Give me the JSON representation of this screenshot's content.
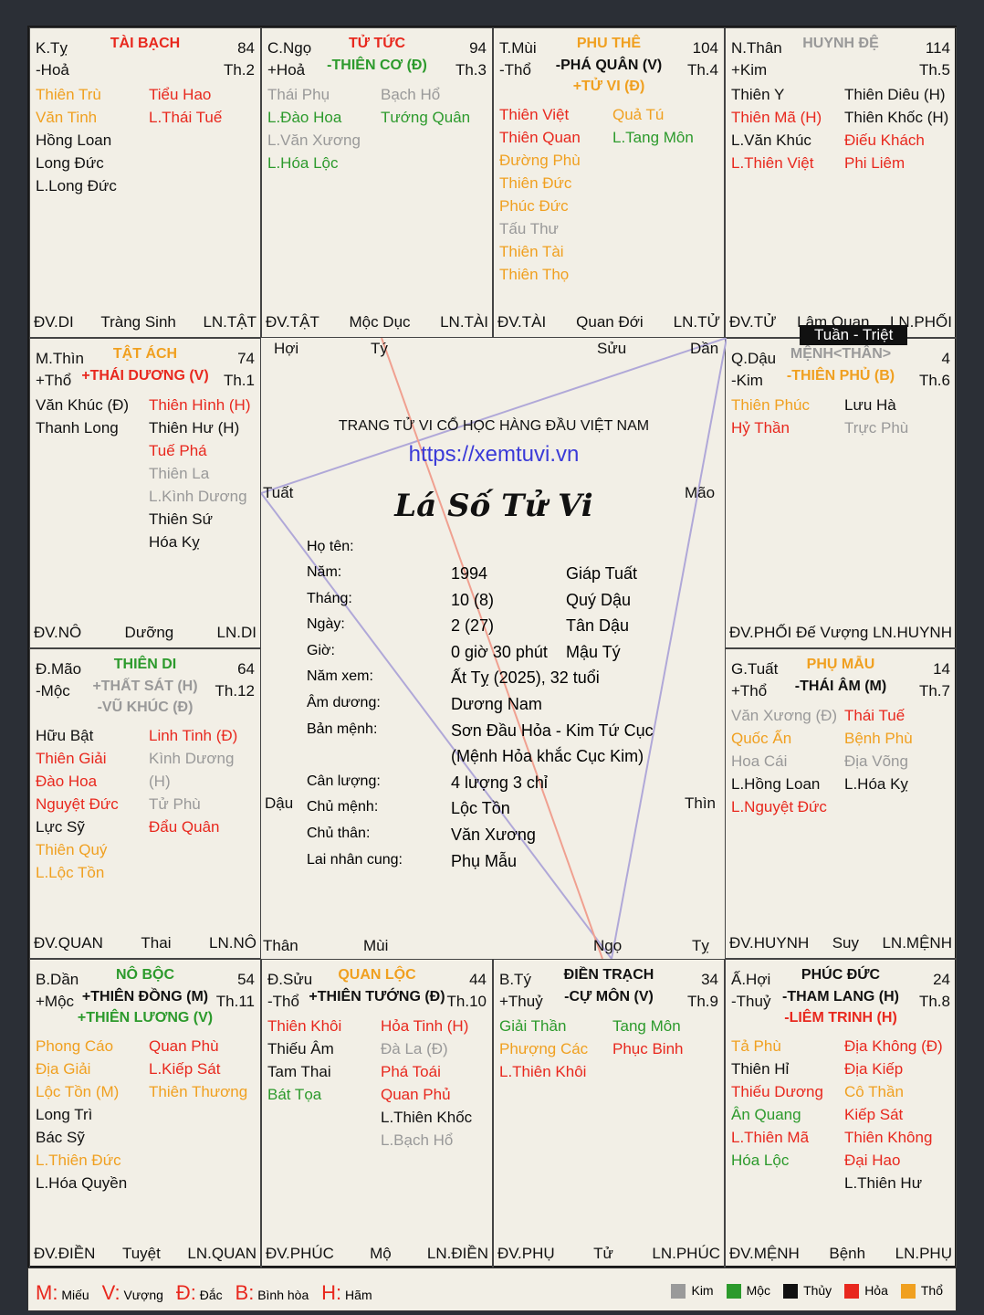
{
  "tuan_triet": "Tuần - Triệt",
  "center": {
    "site": "TRANG TỬ VI CỔ HỌC HÀNG ĐẦU VIỆT NAM",
    "url": "https://xemtuvi.vn",
    "title": "Lá Số Tử Vi",
    "name_label": "Họ tên:",
    "name_value": "",
    "rows": [
      {
        "l": "Năm:",
        "v": "1994",
        "c": "Giáp Tuất"
      },
      {
        "l": "Tháng:",
        "v": "10 (8)",
        "c": "Quý Dậu"
      },
      {
        "l": "Ngày:",
        "v": "2 (27)",
        "c": "Tân Dậu"
      },
      {
        "l": "Giờ:",
        "v": "0 giờ 30 phút",
        "c": "Mậu Tý"
      },
      {
        "l": "Năm xem:",
        "v": "Ất Tỵ (2025), 32 tuổi",
        "c": ""
      },
      {
        "l": "Âm dương:",
        "v": "Dương Nam",
        "c": ""
      },
      {
        "l": "Bản mệnh:",
        "v": "Sơn Đầu Hỏa - Kim Tứ Cục",
        "c": ""
      },
      {
        "l": "",
        "v": "(Mệnh Hỏa khắc Cục Kim)",
        "c": ""
      },
      {
        "l": "Cân lượng:",
        "v": "4 lượng 3 chỉ",
        "c": ""
      },
      {
        "l": "Chủ mệnh:",
        "v": "Lộc Tồn",
        "c": ""
      },
      {
        "l": "Chủ thân:",
        "v": "Văn Xương",
        "c": ""
      },
      {
        "l": "Lai nhân cung:",
        "v": "Phụ Mẫu",
        "c": ""
      }
    ],
    "branches": {
      "hoi": "Hợi",
      "ty_rat": "Tý",
      "suu": "Sửu",
      "dan": "Dần",
      "tuat": "Tuất",
      "mao": "Mão",
      "dau": "Dậu",
      "thin": "Thìn",
      "than": "Thân",
      "mui": "Mùi",
      "ngo": "Ngọ",
      "ty_snake": "Tỵ"
    }
  },
  "cells": [
    {
      "id": "ty",
      "pos": "K.Tỵ",
      "el": "-Hoả",
      "agn": "84",
      "th": "Th.2",
      "pal": "TÀI BẠCH",
      "palc": "r",
      "majors": [],
      "left": [
        [
          "Thiên Trù",
          "o"
        ],
        [
          "Văn Tinh",
          "o"
        ],
        [
          "Hồng Loan",
          "k"
        ],
        [
          "Long Đức",
          "k"
        ],
        [
          "L.Long Đức",
          "k"
        ]
      ],
      "right": [
        [
          "Tiểu Hao",
          "r"
        ],
        [
          "L.Thái Tuế",
          "r"
        ]
      ],
      "b1": "ĐV.DI",
      "b2": "Tràng Sinh",
      "b3": "LN.TẬT"
    },
    {
      "id": "ngo",
      "pos": "C.Ngọ",
      "el": "+Hoả",
      "agn": "94",
      "th": "Th.3",
      "pal": "TỬ TỨC",
      "palc": "r",
      "majors": [
        [
          "-THIÊN CƠ (Đ)",
          "g"
        ]
      ],
      "left": [
        [
          "Thái Phụ",
          "gy"
        ],
        [
          "L.Đào Hoa",
          "g"
        ],
        [
          "L.Văn Xương",
          "gy"
        ],
        [
          "L.Hóa Lộc",
          "g"
        ]
      ],
      "right": [
        [
          "Bạch Hổ",
          "gy"
        ],
        [
          "Tướng Quân",
          "g"
        ]
      ],
      "b1": "ĐV.TẬT",
      "b2": "Mộc Dục",
      "b3": "LN.TÀI"
    },
    {
      "id": "mui",
      "pos": "T.Mùi",
      "el": "-Thổ",
      "agn": "104",
      "th": "Th.4",
      "pal": "PHU THÊ",
      "palc": "o",
      "majors": [
        [
          "-PHÁ QUÂN (V)",
          "k"
        ],
        [
          "+TỬ VI (Đ)",
          "o"
        ]
      ],
      "left": [
        [
          "Thiên Việt",
          "r"
        ],
        [
          "Thiên Quan",
          "r"
        ],
        [
          "Đường Phù",
          "o"
        ],
        [
          "Thiên Đức",
          "o"
        ],
        [
          "Phúc Đức",
          "o"
        ],
        [
          "Tấu Thư",
          "gy"
        ],
        [
          "Thiên Tài",
          "o"
        ],
        [
          "Thiên Thọ",
          "o"
        ]
      ],
      "right": [
        [
          "Quả Tú",
          "o"
        ],
        [
          "L.Tang Môn",
          "g"
        ]
      ],
      "b1": "ĐV.TÀI",
      "b2": "Quan Đới",
      "b3": "LN.TỬ"
    },
    {
      "id": "than",
      "pos": "N.Thân",
      "el": "+Kim",
      "agn": "114",
      "th": "Th.5",
      "pal": "HUYNH ĐỆ",
      "palc": "gy",
      "majors": [],
      "left": [
        [
          "Thiên Y",
          "k"
        ],
        [
          "Thiên Mã (H)",
          "r"
        ],
        [
          "L.Văn Khúc",
          "k"
        ],
        [
          "L.Thiên Việt",
          "r"
        ]
      ],
      "right": [
        [
          "Thiên Diêu (H)",
          "k"
        ],
        [
          "Thiên Khốc (H)",
          "k"
        ],
        [
          "Điếu Khách",
          "r"
        ],
        [
          "Phi Liêm",
          "r"
        ]
      ],
      "b1": "ĐV.TỬ",
      "b2": "Lâm Quan",
      "b3": "LN.PHỐI"
    },
    {
      "id": "thin",
      "pos": "M.Thìn",
      "el": "+Thổ",
      "agn": "74",
      "th": "Th.1",
      "pal": "TẬT ÁCH",
      "palc": "o",
      "majors": [
        [
          "+THÁI DƯƠNG (V)",
          "r"
        ]
      ],
      "left": [
        [
          "Văn Khúc (Đ)",
          "k"
        ],
        [
          "Thanh Long",
          "k"
        ]
      ],
      "right": [
        [
          "Thiên Hình (H)",
          "r"
        ],
        [
          "Thiên Hư (H)",
          "k"
        ],
        [
          "Tuế Phá",
          "r"
        ],
        [
          "Thiên La",
          "gy"
        ],
        [
          "L.Kình Dương",
          "gy"
        ],
        [
          "Thiên Sứ",
          "k"
        ],
        [
          "Hóa Kỵ",
          "k"
        ]
      ],
      "b1": "ĐV.NÔ",
      "b2": "Dưỡng",
      "b3": "LN.DI"
    },
    {
      "id": "dau",
      "pos": "Q.Dậu",
      "el": "-Kim",
      "agn": "4",
      "th": "Th.6",
      "pal": "MỆNH<THÂN>",
      "palc": "gy",
      "majors": [
        [
          "-THIÊN PHỦ (B)",
          "o"
        ]
      ],
      "left": [
        [
          "Thiên Phúc",
          "o"
        ],
        [
          "Hỷ Thần",
          "r"
        ]
      ],
      "right": [
        [
          "Lưu Hà",
          "k"
        ],
        [
          "Trực Phù",
          "gy"
        ]
      ],
      "b1": "ĐV.PHỐI",
      "b2": "Đế Vượng",
      "b3": "LN.HUYNH"
    },
    {
      "id": "mao",
      "pos": "Đ.Mão",
      "el": "-Mộc",
      "agn": "64",
      "th": "Th.12",
      "pal": "THIÊN DI",
      "palc": "g",
      "majors": [
        [
          "+THẤT SÁT (H)",
          "gy"
        ],
        [
          "-VŨ KHÚC (Đ)",
          "gy"
        ]
      ],
      "left": [
        [
          "Hữu Bật",
          "k"
        ],
        [
          "Thiên Giải",
          "r"
        ],
        [
          "Đào Hoa",
          "r"
        ],
        [
          "Nguyệt Đức",
          "r"
        ],
        [
          "Lực Sỹ",
          "k"
        ],
        [
          "Thiên Quý",
          "o"
        ],
        [
          "L.Lộc Tồn",
          "o"
        ]
      ],
      "right": [
        [
          "Linh Tinh (Đ)",
          "r"
        ],
        [
          "Kình Dương",
          "gy"
        ],
        [
          "(H)",
          "gy"
        ],
        [
          "Tử Phù",
          "gy"
        ],
        [
          "Đẩu Quân",
          "r"
        ]
      ],
      "b1": "ĐV.QUAN",
      "b2": "Thai",
      "b3": "LN.NÔ"
    },
    {
      "id": "tuat",
      "pos": "G.Tuất",
      "el": "+Thổ",
      "agn": "14",
      "th": "Th.7",
      "pal": "PHỤ MẪU",
      "palc": "o",
      "majors": [
        [
          "-THÁI ÂM (M)",
          "k"
        ]
      ],
      "left": [
        [
          "Văn Xương (Đ)",
          "gy"
        ],
        [
          "Quốc Ấn",
          "o"
        ],
        [
          "Hoa Cái",
          "gy"
        ],
        [
          "L.Hồng Loan",
          "k"
        ],
        [
          "L.Nguyệt Đức",
          "r"
        ]
      ],
      "right": [
        [
          "Thái Tuế",
          "r"
        ],
        [
          "Bệnh Phù",
          "o"
        ],
        [
          "Địa Võng",
          "gy"
        ],
        [
          "L.Hóa Kỵ",
          "k"
        ]
      ],
      "b1": "ĐV.HUYNH",
      "b2": "Suy",
      "b3": "LN.MỆNH"
    },
    {
      "id": "dan",
      "pos": "B.Dần",
      "el": "+Mộc",
      "agn": "54",
      "th": "Th.11",
      "pal": "NÔ BỘC",
      "palc": "g",
      "majors": [
        [
          "+THIÊN ĐỒNG (M)",
          "k"
        ],
        [
          "+THIÊN LƯƠNG (V)",
          "g"
        ]
      ],
      "left": [
        [
          "Phong Cáo",
          "o"
        ],
        [
          "Địa Giải",
          "o"
        ],
        [
          "Lộc Tồn (M)",
          "o"
        ],
        [
          "Long Trì",
          "k"
        ],
        [
          "Bác Sỹ",
          "k"
        ],
        [
          "L.Thiên Đức",
          "o"
        ],
        [
          "L.Hóa Quyền",
          "k"
        ]
      ],
      "right": [
        [
          "Quan Phù",
          "r"
        ],
        [
          "L.Kiếp Sát",
          "r"
        ],
        [
          "Thiên Thương",
          "o"
        ]
      ],
      "b1": "ĐV.ĐIỀN",
      "b2": "Tuyệt",
      "b3": "LN.QUAN"
    },
    {
      "id": "suu",
      "pos": "Đ.Sửu",
      "el": "-Thổ",
      "agn": "44",
      "th": "Th.10",
      "pal": "QUAN LỘC",
      "palc": "o",
      "majors": [
        [
          "+THIÊN TƯỚNG (Đ)",
          "k"
        ]
      ],
      "left": [
        [
          "Thiên Khôi",
          "r"
        ],
        [
          "Thiếu Âm",
          "k"
        ],
        [
          "Tam Thai",
          "k"
        ],
        [
          "Bát Tọa",
          "g"
        ]
      ],
      "right": [
        [
          "Hỏa Tinh (H)",
          "r"
        ],
        [
          "Đà La (Đ)",
          "gy"
        ],
        [
          "Phá Toái",
          "r"
        ],
        [
          "Quan Phủ",
          "r"
        ],
        [
          "L.Thiên Khốc",
          "k"
        ],
        [
          "L.Bạch Hổ",
          "gy"
        ]
      ],
      "b1": "ĐV.PHÚC",
      "b2": "Mộ",
      "b3": "LN.ĐIỀN"
    },
    {
      "id": "tyrat",
      "pos": "B.Tý",
      "el": "+Thuỷ",
      "agn": "34",
      "th": "Th.9",
      "pal": "ĐIỀN TRẠCH",
      "palc": "k",
      "majors": [
        [
          "-CỰ MÔN (V)",
          "k"
        ]
      ],
      "left": [
        [
          "Giải Thần",
          "g"
        ],
        [
          "Phượng Các",
          "o"
        ],
        [
          "L.Thiên Khôi",
          "r"
        ]
      ],
      "right": [
        [
          "Tang Môn",
          "g"
        ],
        [
          "Phục Binh",
          "r"
        ]
      ],
      "b1": "ĐV.PHỤ",
      "b2": "Tử",
      "b3": "LN.PHÚC"
    },
    {
      "id": "hoi",
      "pos": "Ấ.Hợi",
      "el": "-Thuỷ",
      "agn": "24",
      "th": "Th.8",
      "pal": "PHÚC ĐỨC",
      "palc": "k",
      "majors": [
        [
          "-THAM LANG (H)",
          "k"
        ],
        [
          "-LIÊM TRINH (H)",
          "r"
        ]
      ],
      "left": [
        [
          "Tả Phù",
          "o"
        ],
        [
          "Thiên Hỉ",
          "k"
        ],
        [
          "Thiếu Dương",
          "r"
        ],
        [
          "Ân Quang",
          "g"
        ],
        [
          "L.Thiên Mã",
          "r"
        ],
        [
          "Hóa Lộc",
          "g"
        ]
      ],
      "right": [
        [
          "Địa Không (Đ)",
          "r"
        ],
        [
          "Địa Kiếp",
          "r"
        ],
        [
          "Cô Thần",
          "o"
        ],
        [
          "Kiếp Sát",
          "r"
        ],
        [
          "Thiên Không",
          "r"
        ],
        [
          "Đại Hao",
          "r"
        ],
        [
          "L.Thiên Hư",
          "k"
        ]
      ],
      "b1": "ĐV.MỆNH",
      "b2": "Bệnh",
      "b3": "LN.PHỤ"
    }
  ],
  "legend": {
    "m_key": "M:",
    "m_text": "Miếu",
    "v_key": "V:",
    "v_text": "Vượng",
    "d_key": "Đ:",
    "d_text": "Đắc",
    "b_key": "B:",
    "b_text": "Bình hòa",
    "h_key": "H:",
    "h_text": "Hãm",
    "elements": [
      {
        "name": "Kim",
        "color": "#9a9a9a"
      },
      {
        "name": "Mộc",
        "color": "#2c9a2c"
      },
      {
        "name": "Thủy",
        "color": "#111111"
      },
      {
        "name": "Hỏa",
        "color": "#e8281e"
      },
      {
        "name": "Thổ",
        "color": "#f0a020"
      }
    ]
  }
}
